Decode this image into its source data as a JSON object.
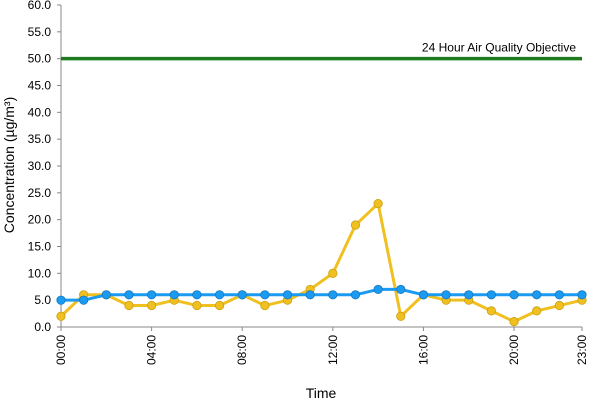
{
  "chart_data": {
    "type": "line",
    "title": "",
    "xlabel": "Time",
    "ylabel": "Concentration (µg/m³)",
    "ylim": [
      0,
      60
    ],
    "yticks": [
      "0.0",
      "5.0",
      "10.0",
      "15.0",
      "20.0",
      "25.0",
      "30.0",
      "35.0",
      "40.0",
      "45.0",
      "50.0",
      "55.0",
      "60.0"
    ],
    "xlim": [
      0,
      23
    ],
    "xticks": [
      {
        "x": 0,
        "label": "00:00"
      },
      {
        "x": 4,
        "label": "04:00"
      },
      {
        "x": 8,
        "label": "08:00"
      },
      {
        "x": 12,
        "label": "12:00"
      },
      {
        "x": 16,
        "label": "16:00"
      },
      {
        "x": 20,
        "label": "20:00"
      },
      {
        "x": 23,
        "label": "23:00"
      }
    ],
    "grid": false,
    "x": [
      0,
      1,
      2,
      3,
      4,
      5,
      6,
      7,
      8,
      9,
      10,
      11,
      12,
      13,
      14,
      15,
      16,
      17,
      18,
      19,
      20,
      21,
      22,
      23
    ],
    "series": [
      {
        "color": "#f0c020",
        "values": [
          2,
          6,
          6,
          4,
          4,
          5,
          4,
          4,
          6,
          4,
          5,
          7,
          10,
          19,
          23,
          2,
          6,
          5,
          5,
          3,
          1,
          3,
          4,
          5
        ]
      },
      {
        "color": "#1a9af0",
        "values": [
          5,
          5,
          6,
          6,
          6,
          6,
          6,
          6,
          6,
          6,
          6,
          6,
          6,
          6,
          7,
          7,
          6,
          6,
          6,
          6,
          6,
          6,
          6,
          6
        ]
      }
    ],
    "reference_line": {
      "y": 50,
      "label": "24 Hour Air Quality Objective",
      "color": "#1e7a1e"
    }
  }
}
